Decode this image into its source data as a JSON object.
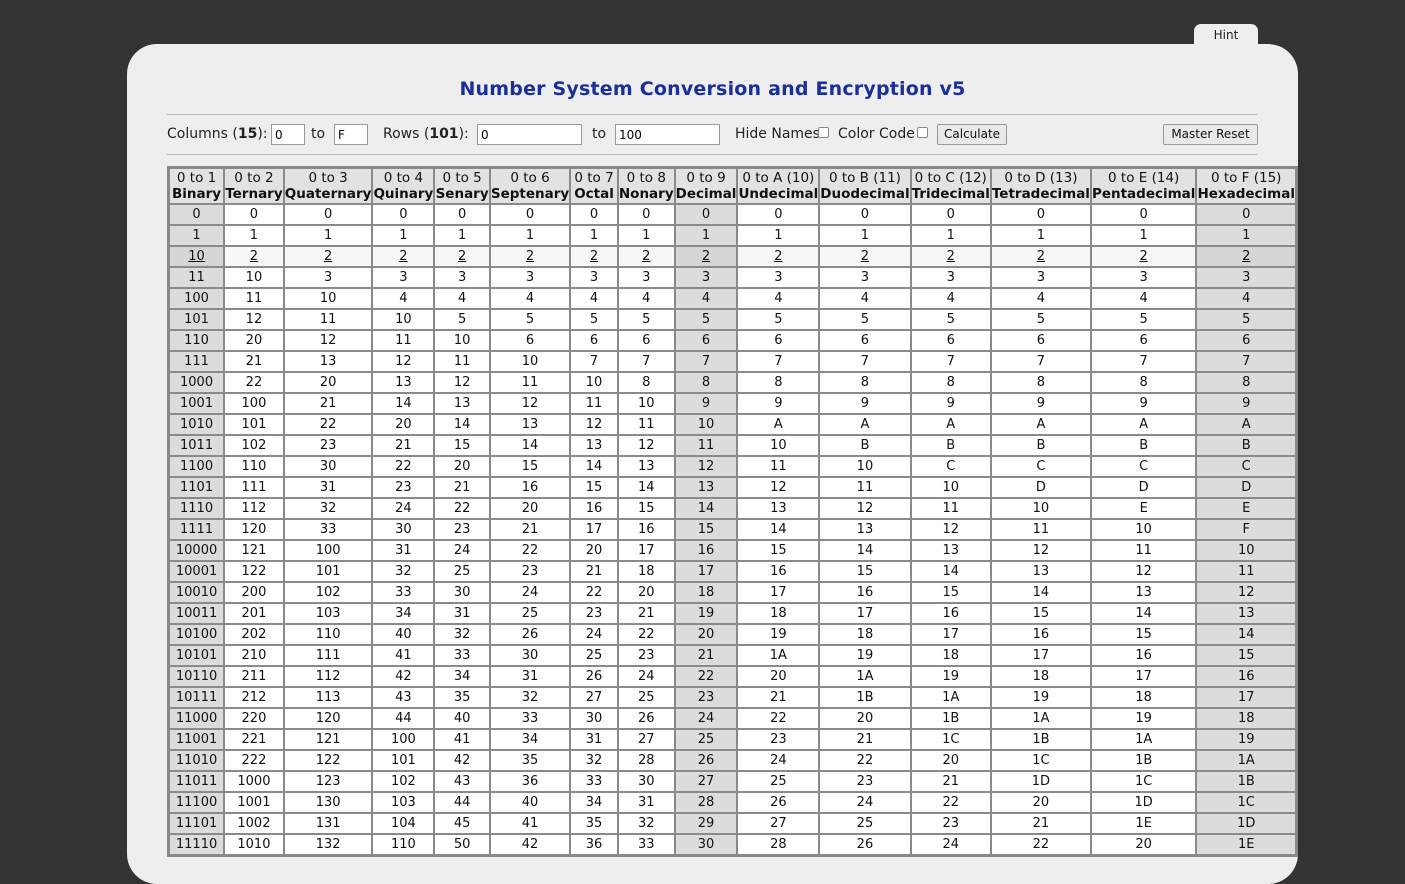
{
  "hint_label": "Hint",
  "title": "Number System Conversion and Encryption v5",
  "controls": {
    "columns_label": "Columns (",
    "columns_count": "15",
    "columns_close": "):",
    "col_from": "0",
    "to_label_1": "to",
    "col_to": "F",
    "rows_label": "Rows (",
    "rows_count": "101",
    "rows_close": "):",
    "row_from": "0",
    "to_label_2": "to",
    "row_to": "100",
    "hide_names_label": "Hide Names",
    "color_code_label": "Color Code",
    "calculate_label": "Calculate",
    "master_reset_label": "Master Reset"
  },
  "table": {
    "headers": [
      {
        "range": "0 to 1",
        "name": "Binary"
      },
      {
        "range": "0 to 2",
        "name": "Ternary"
      },
      {
        "range": "0 to 3",
        "name": "Quaternary"
      },
      {
        "range": "0 to 4",
        "name": "Quinary"
      },
      {
        "range": "0 to 5",
        "name": "Senary"
      },
      {
        "range": "0 to 6",
        "name": "Septenary"
      },
      {
        "range": "0 to 7",
        "name": "Octal"
      },
      {
        "range": "0 to 8",
        "name": "Nonary"
      },
      {
        "range": "0 to 9",
        "name": "Decimal"
      },
      {
        "range": "0 to A (10)",
        "name": "Undecimal"
      },
      {
        "range": "0 to B (11)",
        "name": "Duodecimal"
      },
      {
        "range": "0 to C (12)",
        "name": "Tridecimal"
      },
      {
        "range": "0 to D (13)",
        "name": "Tetradecimal"
      },
      {
        "range": "0 to E (14)",
        "name": "Pentadecimal"
      },
      {
        "range": "0 to F (15)",
        "name": "Hexadecimal"
      }
    ],
    "highlight_columns": [
      0,
      8,
      14
    ],
    "underlined_row": 2,
    "rows": [
      [
        "0",
        "0",
        "0",
        "0",
        "0",
        "0",
        "0",
        "0",
        "0",
        "0",
        "0",
        "0",
        "0",
        "0",
        "0"
      ],
      [
        "1",
        "1",
        "1",
        "1",
        "1",
        "1",
        "1",
        "1",
        "1",
        "1",
        "1",
        "1",
        "1",
        "1",
        "1"
      ],
      [
        "10",
        "2",
        "2",
        "2",
        "2",
        "2",
        "2",
        "2",
        "2",
        "2",
        "2",
        "2",
        "2",
        "2",
        "2"
      ],
      [
        "11",
        "10",
        "3",
        "3",
        "3",
        "3",
        "3",
        "3",
        "3",
        "3",
        "3",
        "3",
        "3",
        "3",
        "3"
      ],
      [
        "100",
        "11",
        "10",
        "4",
        "4",
        "4",
        "4",
        "4",
        "4",
        "4",
        "4",
        "4",
        "4",
        "4",
        "4"
      ],
      [
        "101",
        "12",
        "11",
        "10",
        "5",
        "5",
        "5",
        "5",
        "5",
        "5",
        "5",
        "5",
        "5",
        "5",
        "5"
      ],
      [
        "110",
        "20",
        "12",
        "11",
        "10",
        "6",
        "6",
        "6",
        "6",
        "6",
        "6",
        "6",
        "6",
        "6",
        "6"
      ],
      [
        "111",
        "21",
        "13",
        "12",
        "11",
        "10",
        "7",
        "7",
        "7",
        "7",
        "7",
        "7",
        "7",
        "7",
        "7"
      ],
      [
        "1000",
        "22",
        "20",
        "13",
        "12",
        "11",
        "10",
        "8",
        "8",
        "8",
        "8",
        "8",
        "8",
        "8",
        "8"
      ],
      [
        "1001",
        "100",
        "21",
        "14",
        "13",
        "12",
        "11",
        "10",
        "9",
        "9",
        "9",
        "9",
        "9",
        "9",
        "9"
      ],
      [
        "1010",
        "101",
        "22",
        "20",
        "14",
        "13",
        "12",
        "11",
        "10",
        "A",
        "A",
        "A",
        "A",
        "A",
        "A"
      ],
      [
        "1011",
        "102",
        "23",
        "21",
        "15",
        "14",
        "13",
        "12",
        "11",
        "10",
        "B",
        "B",
        "B",
        "B",
        "B"
      ],
      [
        "1100",
        "110",
        "30",
        "22",
        "20",
        "15",
        "14",
        "13",
        "12",
        "11",
        "10",
        "C",
        "C",
        "C",
        "C"
      ],
      [
        "1101",
        "111",
        "31",
        "23",
        "21",
        "16",
        "15",
        "14",
        "13",
        "12",
        "11",
        "10",
        "D",
        "D",
        "D"
      ],
      [
        "1110",
        "112",
        "32",
        "24",
        "22",
        "20",
        "16",
        "15",
        "14",
        "13",
        "12",
        "11",
        "10",
        "E",
        "E"
      ],
      [
        "1111",
        "120",
        "33",
        "30",
        "23",
        "21",
        "17",
        "16",
        "15",
        "14",
        "13",
        "12",
        "11",
        "10",
        "F"
      ],
      [
        "10000",
        "121",
        "100",
        "31",
        "24",
        "22",
        "20",
        "17",
        "16",
        "15",
        "14",
        "13",
        "12",
        "11",
        "10"
      ],
      [
        "10001",
        "122",
        "101",
        "32",
        "25",
        "23",
        "21",
        "18",
        "17",
        "16",
        "15",
        "14",
        "13",
        "12",
        "11"
      ],
      [
        "10010",
        "200",
        "102",
        "33",
        "30",
        "24",
        "22",
        "20",
        "18",
        "17",
        "16",
        "15",
        "14",
        "13",
        "12"
      ],
      [
        "10011",
        "201",
        "103",
        "34",
        "31",
        "25",
        "23",
        "21",
        "19",
        "18",
        "17",
        "16",
        "15",
        "14",
        "13"
      ],
      [
        "10100",
        "202",
        "110",
        "40",
        "32",
        "26",
        "24",
        "22",
        "20",
        "19",
        "18",
        "17",
        "16",
        "15",
        "14"
      ],
      [
        "10101",
        "210",
        "111",
        "41",
        "33",
        "30",
        "25",
        "23",
        "21",
        "1A",
        "19",
        "18",
        "17",
        "16",
        "15"
      ],
      [
        "10110",
        "211",
        "112",
        "42",
        "34",
        "31",
        "26",
        "24",
        "22",
        "20",
        "1A",
        "19",
        "18",
        "17",
        "16"
      ],
      [
        "10111",
        "212",
        "113",
        "43",
        "35",
        "32",
        "27",
        "25",
        "23",
        "21",
        "1B",
        "1A",
        "19",
        "18",
        "17"
      ],
      [
        "11000",
        "220",
        "120",
        "44",
        "40",
        "33",
        "30",
        "26",
        "24",
        "22",
        "20",
        "1B",
        "1A",
        "19",
        "18"
      ],
      [
        "11001",
        "221",
        "121",
        "100",
        "41",
        "34",
        "31",
        "27",
        "25",
        "23",
        "21",
        "1C",
        "1B",
        "1A",
        "19"
      ],
      [
        "11010",
        "222",
        "122",
        "101",
        "42",
        "35",
        "32",
        "28",
        "26",
        "24",
        "22",
        "20",
        "1C",
        "1B",
        "1A"
      ],
      [
        "11011",
        "1000",
        "123",
        "102",
        "43",
        "36",
        "33",
        "30",
        "27",
        "25",
        "23",
        "21",
        "1D",
        "1C",
        "1B"
      ],
      [
        "11100",
        "1001",
        "130",
        "103",
        "44",
        "40",
        "34",
        "31",
        "28",
        "26",
        "24",
        "22",
        "20",
        "1D",
        "1C"
      ],
      [
        "11101",
        "1002",
        "131",
        "104",
        "45",
        "41",
        "35",
        "32",
        "29",
        "27",
        "25",
        "23",
        "21",
        "1E",
        "1D"
      ],
      [
        "11110",
        "1010",
        "132",
        "110",
        "50",
        "42",
        "36",
        "33",
        "30",
        "28",
        "26",
        "24",
        "22",
        "20",
        "1E"
      ]
    ]
  }
}
